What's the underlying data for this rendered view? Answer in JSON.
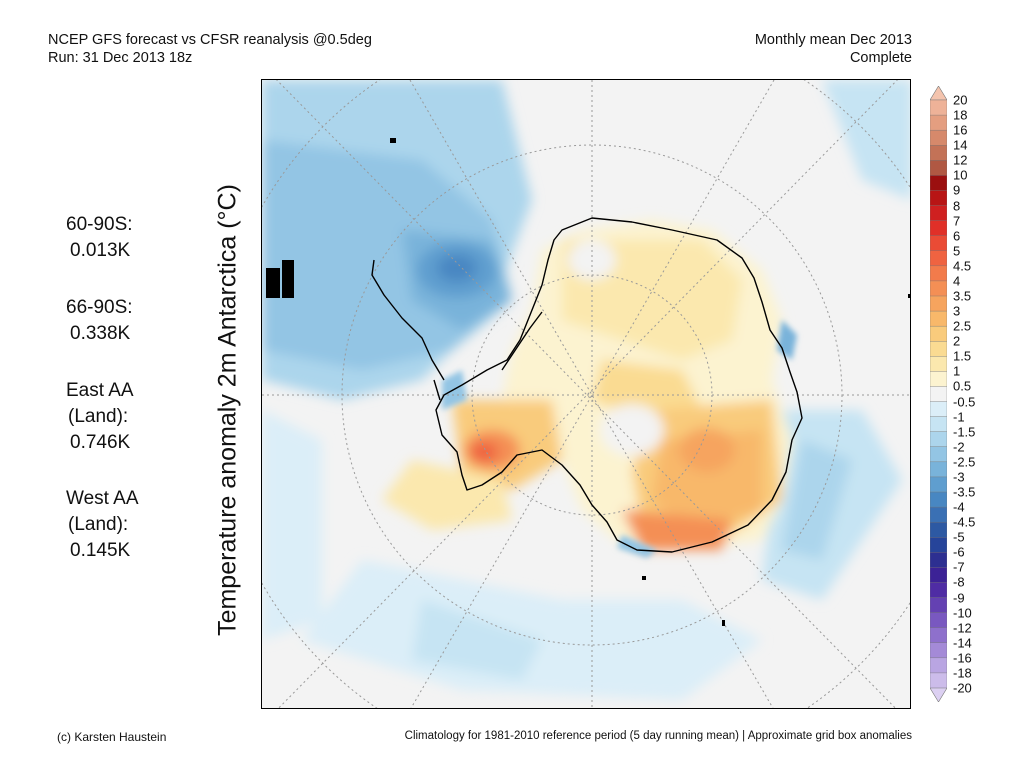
{
  "header": {
    "left_line1": "NCEP GFS forecast vs CFSR reanalysis @0.5deg",
    "left_line2": "Run: 31 Dec 2013 18z",
    "right_line1": "Monthly mean Dec 2013",
    "right_line2": "Complete"
  },
  "title": "Temperature anomaly 2m Antarctica (°C)",
  "stats": {
    "s1_label": "60-90S:",
    "s1_value": "0.013K",
    "s2_label": "66-90S:",
    "s2_value": "0.338K",
    "s3_label1": "East AA",
    "s3_label2": "(Land):",
    "s3_value": "0.746K",
    "s4_label1": "West AA",
    "s4_label2": "(Land):",
    "s4_value": "0.145K"
  },
  "colorbar": {
    "labels": [
      "20",
      "18",
      "16",
      "14",
      "12",
      "10",
      "9",
      "8",
      "7",
      "6",
      "5",
      "4.5",
      "4",
      "3.5",
      "3",
      "2.5",
      "2",
      "1.5",
      "1",
      "0.5",
      "-0.5",
      "-1",
      "-1.5",
      "-2",
      "-2.5",
      "-3",
      "-3.5",
      "-4",
      "-4.5",
      "-5",
      "-6",
      "-7",
      "-8",
      "-9",
      "-10",
      "-12",
      "-14",
      "-16",
      "-18",
      "-20"
    ],
    "colors": [
      "#f4c4ae",
      "#eeb298",
      "#e49e80",
      "#d6896b",
      "#c37257",
      "#b05843",
      "#9b0f0f",
      "#b81515",
      "#cf2020",
      "#e03028",
      "#ea4b35",
      "#ef6341",
      "#f27b4b",
      "#f48f55",
      "#f6a45e",
      "#f8b86a",
      "#f9cb7c",
      "#fadb92",
      "#fbe8ae",
      "#fcf3d0",
      "#f3f3f3",
      "#dbeef8",
      "#c6e4f3",
      "#acd5ec",
      "#93c5e4",
      "#79b3da",
      "#5f9ecf",
      "#4887c2",
      "#3a70b4",
      "#2d59a3",
      "#26449a",
      "#2d2f91",
      "#3c2296",
      "#4f2ca4",
      "#6441b2",
      "#7958c0",
      "#8e70cc",
      "#a48ad7",
      "#b9a5e2",
      "#ccbcea",
      "#dcd0f2"
    ]
  },
  "footer": {
    "left": "(c) Karsten Haustein",
    "right": "Climatology for 1981-2010 reference period (5 day running mean) | Approximate grid box anomalies"
  }
}
